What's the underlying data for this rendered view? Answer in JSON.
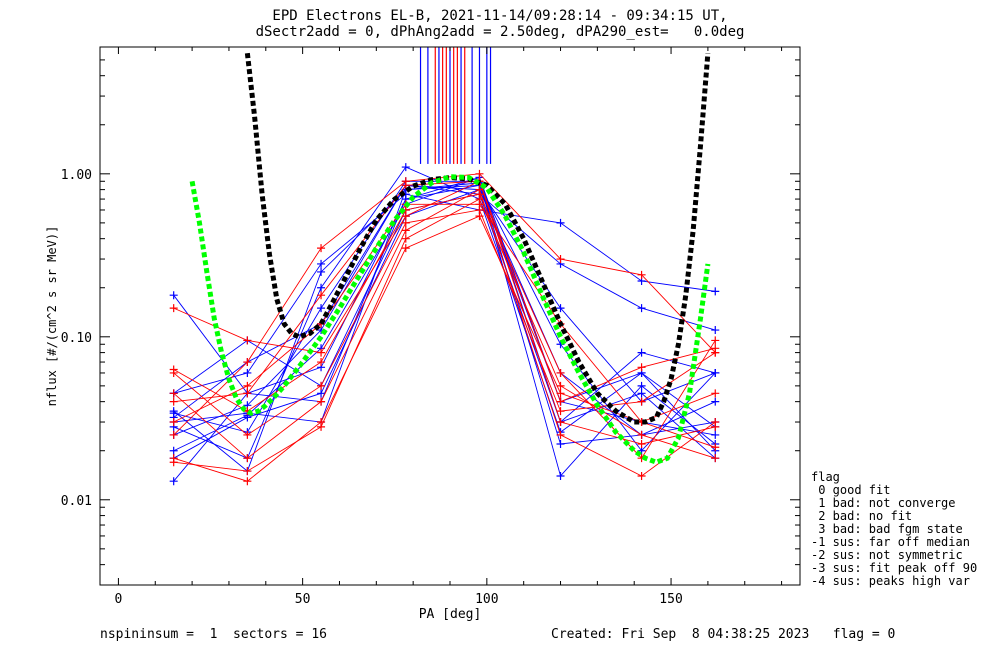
{
  "title_line1": "EPD Electrons EL-B, 2021-11-14/09:28:14 - 09:34:15 UT,",
  "title_line2": "dSectr2add = 0, dPhAng2add = 2.50deg, dPA290_est=   0.0deg",
  "footer_left": "nspininsum =  1  sectors = 16",
  "footer_right": "Created: Fri Sep  8 04:38:25 2023   flag = 0",
  "legend": {
    "title": "flag",
    "items": [
      " 0 good fit",
      " 1 bad: not converge",
      " 2 bad: no fit",
      " 3 bad: bad fgm state",
      "-1 sus: far off median",
      "-2 sus: not symmetric",
      "-3 sus: fit peak off 90",
      "-4 sus: peaks high var"
    ]
  },
  "chart_data": {
    "type": "line",
    "xlabel": "PA [deg]",
    "ylabel": "nflux [#/(cm^2 s sr MeV)]",
    "xlim": [
      -5,
      185
    ],
    "ylim": [
      0.003,
      6
    ],
    "yscale": "log",
    "xticks": [
      0,
      50,
      100,
      150
    ],
    "xtick_labels": [
      "0",
      "50",
      "100",
      "150"
    ],
    "yticks": [
      0.01,
      0.1,
      1.0
    ],
    "ytick_labels": [
      "0.01",
      "0.10",
      "1.00"
    ],
    "colors": {
      "blue": "#0000ff",
      "red": "#ff0000",
      "black": "#000000",
      "green": "#00ff00"
    },
    "pa_bins": [
      15,
      35,
      55,
      78,
      98,
      120,
      142,
      162
    ],
    "series": [
      {
        "color": "blue",
        "values": [
          0.013,
          0.045,
          0.065,
          0.7,
          0.85,
          0.09,
          0.02,
          0.06
        ]
      },
      {
        "color": "blue",
        "values": [
          0.018,
          0.032,
          0.045,
          0.55,
          0.8,
          0.06,
          0.025,
          0.03
        ]
      },
      {
        "color": "blue",
        "values": [
          0.02,
          0.033,
          0.085,
          0.65,
          0.95,
          0.04,
          0.03,
          0.025
        ]
      },
      {
        "color": "blue",
        "values": [
          0.025,
          0.038,
          0.11,
          0.85,
          0.75,
          0.03,
          0.045,
          0.018
        ]
      },
      {
        "color": "blue",
        "values": [
          0.028,
          0.018,
          0.2,
          1.1,
          0.7,
          0.026,
          0.06,
          0.02
        ]
      },
      {
        "color": "blue",
        "values": [
          0.034,
          0.026,
          0.15,
          0.9,
          0.9,
          0.014,
          0.05,
          0.022
        ]
      },
      {
        "color": "blue",
        "values": [
          0.035,
          0.015,
          0.25,
          0.8,
          0.85,
          0.04,
          0.06,
          0.028
        ]
      },
      {
        "color": "blue",
        "values": [
          0.045,
          0.06,
          0.28,
          0.75,
          0.6,
          0.5,
          0.22,
          0.19
        ]
      },
      {
        "color": "blue",
        "values": [
          0.045,
          0.095,
          0.05,
          0.6,
          0.75,
          0.28,
          0.15,
          0.11
        ]
      },
      {
        "color": "blue",
        "values": [
          0.032,
          0.07,
          0.12,
          0.85,
          0.8,
          0.15,
          0.04,
          0.06
        ]
      },
      {
        "color": "blue",
        "values": [
          0.18,
          0.045,
          0.04,
          0.7,
          0.95,
          0.03,
          0.08,
          0.06
        ]
      },
      {
        "color": "blue",
        "values": [
          0.03,
          0.034,
          0.03,
          0.8,
          0.88,
          0.022,
          0.025,
          0.04
        ]
      },
      {
        "color": "red",
        "values": [
          0.018,
          0.013,
          0.03,
          0.35,
          0.55,
          0.045,
          0.03,
          0.021
        ]
      },
      {
        "color": "red",
        "values": [
          0.017,
          0.015,
          0.028,
          0.4,
          0.7,
          0.05,
          0.025,
          0.018
        ]
      },
      {
        "color": "red",
        "values": [
          0.045,
          0.018,
          0.04,
          0.45,
          0.8,
          0.025,
          0.014,
          0.03
        ]
      },
      {
        "color": "red",
        "values": [
          0.06,
          0.025,
          0.05,
          0.5,
          0.6,
          0.035,
          0.04,
          0.08
        ]
      },
      {
        "color": "red",
        "values": [
          0.063,
          0.035,
          0.07,
          0.6,
          0.75,
          0.06,
          0.018,
          0.095
        ]
      },
      {
        "color": "red",
        "values": [
          0.15,
          0.095,
          0.08,
          0.55,
          0.9,
          0.04,
          0.065,
          0.085
        ]
      },
      {
        "color": "red",
        "values": [
          0.03,
          0.05,
          0.12,
          0.65,
          0.65,
          0.12,
          0.03,
          0.045
        ]
      },
      {
        "color": "red",
        "values": [
          0.025,
          0.07,
          0.35,
          0.9,
          1.0,
          0.3,
          0.24,
          0.08
        ]
      },
      {
        "color": "red",
        "values": [
          0.04,
          0.045,
          0.18,
          0.85,
          0.9,
          0.03,
          0.022,
          0.028
        ]
      }
    ],
    "spike_x": [
      82,
      84,
      86,
      87,
      88,
      89,
      90,
      91,
      92,
      93,
      94,
      96,
      98,
      100,
      101
    ],
    "spike_colors": [
      "blue",
      "blue",
      "red",
      "blue",
      "red",
      "red",
      "blue",
      "red",
      "red",
      "blue",
      "red",
      "blue",
      "blue",
      "blue",
      "blue"
    ],
    "fit_black": {
      "x": [
        35,
        37,
        39,
        41,
        43,
        45,
        47,
        49,
        52,
        55,
        58,
        62,
        66,
        70,
        75,
        80,
        85,
        90,
        95,
        100,
        105,
        110,
        115,
        120,
        125,
        130,
        135,
        140,
        143,
        146,
        148,
        150,
        152,
        154,
        156,
        158,
        160
      ],
      "y": [
        5.5,
        2.2,
        0.75,
        0.32,
        0.17,
        0.12,
        0.105,
        0.1,
        0.105,
        0.12,
        0.16,
        0.24,
        0.36,
        0.52,
        0.7,
        0.84,
        0.92,
        0.95,
        0.93,
        0.85,
        0.65,
        0.4,
        0.22,
        0.12,
        0.07,
        0.045,
        0.035,
        0.03,
        0.03,
        0.032,
        0.04,
        0.055,
        0.09,
        0.18,
        0.45,
        1.5,
        5.5
      ]
    },
    "fit_green": {
      "x": [
        20,
        22,
        24,
        26,
        28,
        30,
        32,
        34,
        36,
        38,
        40,
        42,
        45,
        50,
        55,
        60,
        65,
        70,
        75,
        80,
        85,
        90,
        95,
        100,
        105,
        110,
        115,
        120,
        125,
        130,
        135,
        140,
        143,
        146,
        149,
        152,
        155,
        158,
        160
      ],
      "y": [
        0.9,
        0.5,
        0.25,
        0.13,
        0.08,
        0.055,
        0.042,
        0.036,
        0.034,
        0.035,
        0.038,
        0.042,
        0.05,
        0.07,
        0.1,
        0.15,
        0.23,
        0.35,
        0.52,
        0.72,
        0.88,
        0.96,
        0.95,
        0.82,
        0.55,
        0.33,
        0.18,
        0.1,
        0.06,
        0.038,
        0.026,
        0.02,
        0.018,
        0.017,
        0.018,
        0.024,
        0.045,
        0.13,
        0.28
      ]
    }
  }
}
